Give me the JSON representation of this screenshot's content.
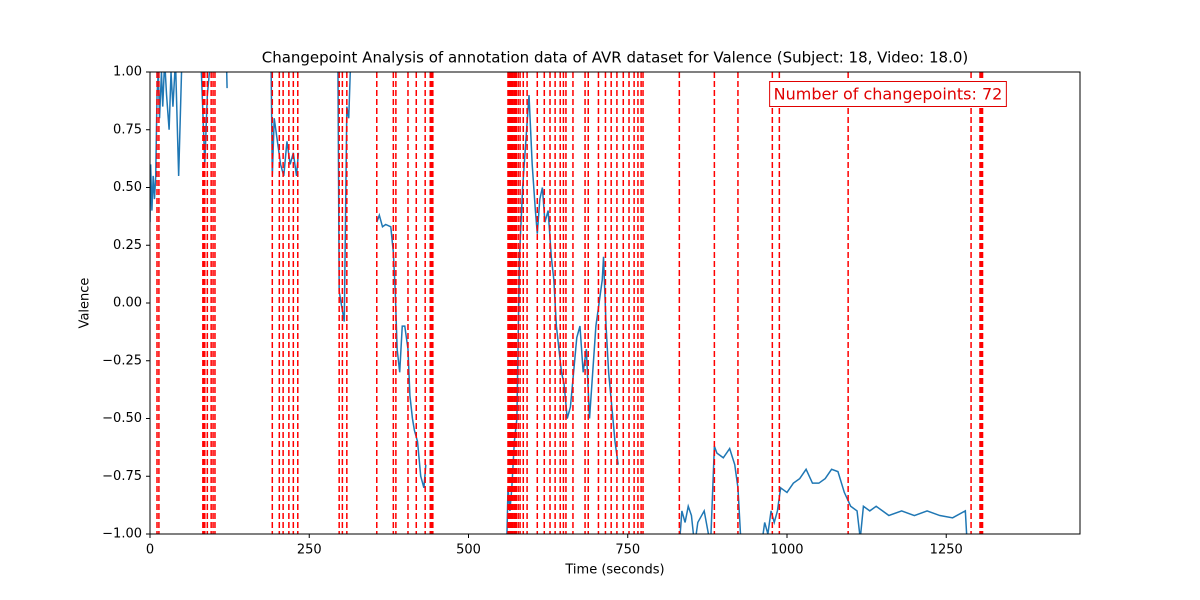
{
  "chart_data": {
    "type": "line",
    "title": "Changepoint Analysis of annotation data of AVR dataset for Valence (Subject: 18, Video: 18.0)",
    "xlabel": "Time (seconds)",
    "ylabel": "Valence",
    "annotation": "Number of changepoints: 72",
    "annotation_color": "#e00000",
    "xlim": [
      0,
      1460
    ],
    "ylim": [
      -1,
      1
    ],
    "xticks": [
      0,
      250,
      500,
      750,
      1000,
      1250
    ],
    "yticks": [
      {
        "value": -1,
        "label": "−1.00"
      },
      {
        "value": -0.75,
        "label": "−0.75"
      },
      {
        "value": -0.5,
        "label": "−0.50"
      },
      {
        "value": -0.25,
        "label": "−0.25"
      },
      {
        "value": 0,
        "label": "0.00"
      },
      {
        "value": 0.25,
        "label": "0.25"
      },
      {
        "value": 0.5,
        "label": "0.50"
      },
      {
        "value": 0.75,
        "label": "0.75"
      },
      {
        "value": 1,
        "label": "1.00"
      }
    ],
    "x": [
      0,
      1,
      3,
      5,
      7,
      9,
      11,
      13,
      15,
      18,
      20,
      23,
      26,
      30,
      33,
      36,
      40,
      45,
      50,
      55,
      80,
      82,
      86,
      90,
      95,
      120,
      121,
      124,
      190,
      192,
      195,
      200,
      205,
      210,
      215,
      220,
      225,
      230,
      233,
      236,
      295,
      297,
      300,
      305,
      309,
      312,
      315,
      353,
      356,
      360,
      365,
      370,
      378,
      382,
      385,
      388,
      392,
      396,
      400,
      405,
      408,
      412,
      415,
      420,
      425,
      430,
      433,
      436,
      532,
      533,
      560,
      562,
      565,
      568,
      572,
      576,
      580,
      585,
      590,
      595,
      600,
      605,
      608,
      612,
      616,
      620,
      625,
      630,
      634,
      638,
      642,
      646,
      650,
      655,
      660,
      665,
      670,
      675,
      680,
      685,
      690,
      695,
      700,
      705,
      710,
      712,
      716,
      720,
      725,
      730,
      735,
      738,
      831,
      835,
      840,
      845,
      850,
      855,
      860,
      870,
      880,
      886,
      890,
      900,
      910,
      918,
      923,
      928,
      960,
      965,
      970,
      975,
      980,
      985,
      990,
      1000,
      1010,
      1020,
      1030,
      1040,
      1050,
      1060,
      1070,
      1080,
      1090,
      1100,
      1110,
      1115,
      1120,
      1130,
      1140,
      1150,
      1160,
      1180,
      1200,
      1220,
      1240,
      1260,
      1280,
      1282
    ],
    "series": [
      {
        "color": "#1f77b4",
        "values": [
          0.35,
          0.6,
          0.4,
          0.55,
          0.45,
          0.55,
          0.9,
          1.0,
          0.8,
          1.0,
          0.85,
          1.05,
          0.9,
          0.75,
          1.0,
          0.85,
          1.05,
          0.55,
          1.05,
          1.05,
          1.05,
          0.9,
          0.6,
          0.9,
          1.05,
          1.05,
          0.93,
          null,
          1.05,
          0.55,
          0.8,
          0.7,
          0.6,
          0.55,
          0.7,
          0.6,
          0.65,
          0.55,
          0.65,
          null,
          1.05,
          0.05,
          0,
          -0.08,
          0.85,
          0.8,
          1.05,
          null,
          0.35,
          0.38,
          0.33,
          0.34,
          0.33,
          0.22,
          0.05,
          -0.2,
          -0.3,
          -0.1,
          -0.1,
          -0.2,
          -0.4,
          -0.5,
          -0.55,
          -0.6,
          -0.75,
          -0.8,
          -0.7,
          null,
          0.98,
          null,
          -1.05,
          -0.8,
          -0.9,
          -0.8,
          -0.6,
          -0.5,
          0.2,
          0.5,
          0.7,
          0.9,
          0.6,
          0.4,
          0.3,
          0.45,
          0.5,
          0.35,
          0.4,
          0.2,
          0.1,
          -0.1,
          -0.2,
          -0.3,
          -0.35,
          -0.5,
          -0.45,
          -0.3,
          -0.15,
          -0.1,
          -0.3,
          -0.2,
          -0.5,
          -0.3,
          -0.1,
          0,
          0.1,
          0.2,
          -0.1,
          -0.3,
          -0.45,
          -0.6,
          -0.7,
          null,
          -1.05,
          -0.9,
          -0.95,
          -0.88,
          -0.92,
          -1.05,
          -0.95,
          -0.9,
          -1.05,
          -0.62,
          -0.65,
          -0.67,
          -0.63,
          -0.7,
          -0.8,
          -1.05,
          -1.05,
          -0.95,
          -1.0,
          -0.9,
          -0.95,
          -0.9,
          -0.8,
          -0.82,
          -0.78,
          -0.76,
          -0.72,
          -0.78,
          -0.78,
          -0.76,
          -0.72,
          -0.73,
          -0.82,
          -0.88,
          -0.9,
          -1.02,
          -0.88,
          -0.9,
          -0.88,
          -0.9,
          -0.92,
          -0.9,
          -0.92,
          -0.9,
          -0.92,
          -0.93,
          -0.9,
          -1.0
        ]
      }
    ],
    "changepoints": [
      11,
      14,
      83,
      84,
      86,
      90,
      96,
      99,
      102,
      192,
      203,
      209,
      218,
      225,
      232,
      297,
      302,
      309,
      356,
      382,
      386,
      405,
      418,
      432,
      440,
      442,
      443,
      444,
      562,
      564,
      565,
      566,
      567,
      568,
      570,
      572,
      573,
      575,
      578,
      581,
      586,
      592,
      608,
      619,
      628,
      636,
      644,
      649,
      653,
      664,
      683,
      688,
      704,
      715,
      724,
      733,
      743,
      752,
      760,
      766,
      771,
      774,
      831,
      886,
      923,
      977,
      988,
      1096,
      1289,
      1303,
      1305,
      1307
    ],
    "changepoint_color": "#ff0000"
  }
}
